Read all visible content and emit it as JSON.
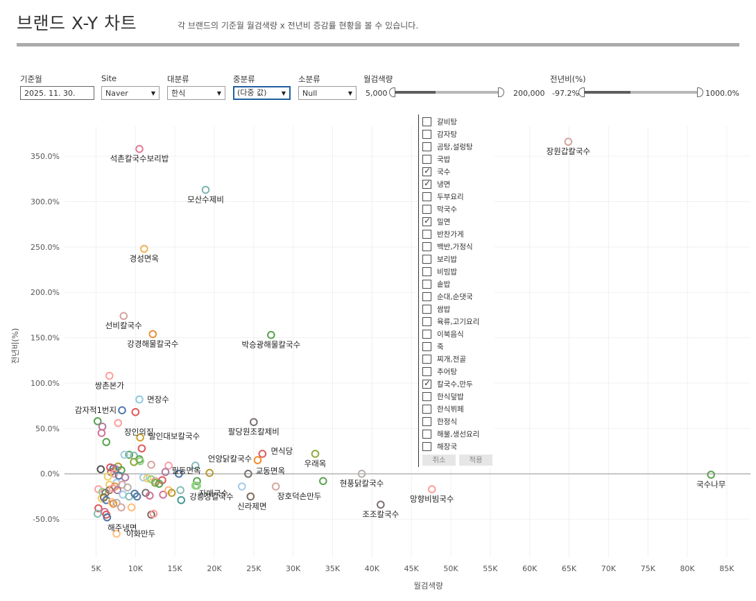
{
  "header": {
    "title": "브랜드 X-Y 차트",
    "subtitle": "각 브랜드의 기준월 월검색량 x 전년비 증감률 현황을 볼 수 있습니다."
  },
  "filters": {
    "base_month": {
      "label": "기준월",
      "value": "2025. 11. 30."
    },
    "site": {
      "label": "Site",
      "value": "Naver"
    },
    "major": {
      "label": "대분류",
      "value": "한식"
    },
    "middle": {
      "label": "중분류",
      "value": "(다중 값)"
    },
    "minor": {
      "label": "소분류",
      "value": "Null"
    },
    "volume": {
      "label": "월검색량",
      "min": "5,000",
      "max": "200,000"
    },
    "yoy": {
      "label": "전년비(%)",
      "min": "-97.2%",
      "max": "1000.0%"
    }
  },
  "dropdown": {
    "items": [
      {
        "label": "갈비탕",
        "checked": false
      },
      {
        "label": "감자탕",
        "checked": false
      },
      {
        "label": "곰탕,설렁탕",
        "checked": false
      },
      {
        "label": "국밥",
        "checked": false
      },
      {
        "label": "국수",
        "checked": true
      },
      {
        "label": "냉면",
        "checked": true
      },
      {
        "label": "두부요리",
        "checked": false
      },
      {
        "label": "막국수",
        "checked": false
      },
      {
        "label": "밀면",
        "checked": true
      },
      {
        "label": "반찬가게",
        "checked": false
      },
      {
        "label": "백반,가정식",
        "checked": false
      },
      {
        "label": "보리밥",
        "checked": false
      },
      {
        "label": "비빔밥",
        "checked": false
      },
      {
        "label": "솥밥",
        "checked": false
      },
      {
        "label": "순대,순댓국",
        "checked": false
      },
      {
        "label": "쌈밥",
        "checked": false
      },
      {
        "label": "육류,고기요리",
        "checked": false
      },
      {
        "label": "이북음식",
        "checked": false
      },
      {
        "label": "죽",
        "checked": false
      },
      {
        "label": "찌개,전골",
        "checked": false
      },
      {
        "label": "추어탕",
        "checked": false
      },
      {
        "label": "칼국수,만두",
        "checked": true
      },
      {
        "label": "한식덮밥",
        "checked": false
      },
      {
        "label": "한식뷔페",
        "checked": false
      },
      {
        "label": "한정식",
        "checked": false
      },
      {
        "label": "해물,생선요리",
        "checked": false
      },
      {
        "label": "해장국",
        "checked": false
      }
    ],
    "cancel_label": "취소",
    "apply_label": "적용"
  },
  "chart_data": {
    "type": "scatter",
    "xlabel": "월검색량",
    "ylabel": "전년비(%)",
    "xlim": [
      1000,
      88000
    ],
    "ylim": [
      -92,
      383
    ],
    "xticks": [
      5000,
      10000,
      15000,
      20000,
      25000,
      30000,
      35000,
      40000,
      45000,
      50000,
      55000,
      60000,
      65000,
      70000,
      75000,
      80000,
      85000
    ],
    "xtick_labels": [
      "5K",
      "10K",
      "15K",
      "20K",
      "25K",
      "30K",
      "35K",
      "40K",
      "45K",
      "50K",
      "55K",
      "60K",
      "65K",
      "70K",
      "75K",
      "80K",
      "85K"
    ],
    "yticks": [
      -50,
      0,
      50,
      100,
      150,
      200,
      250,
      300,
      350
    ],
    "ytick_labels": [
      "-50.0%",
      "0.0%",
      "50.0%",
      "100.0%",
      "150.0%",
      "200.0%",
      "250.0%",
      "300.0%",
      "350.0%"
    ],
    "grid": true,
    "marker": "hollow-circle",
    "points": [
      {
        "label": "석촌칼국수보리밥",
        "x": 10500,
        "y": 358,
        "color": "#e07b91"
      },
      {
        "label": "장원갑칼국수",
        "x": 64900,
        "y": 366,
        "color": "#d4a6a0"
      },
      {
        "label": "모산수제비",
        "x": 18900,
        "y": 313,
        "color": "#7cb4b0"
      },
      {
        "label": "경성면옥",
        "x": 11100,
        "y": 248,
        "color": "#f2b255"
      },
      {
        "label": "선비칼국수",
        "x": 8500,
        "y": 174,
        "color": "#d4a6a0"
      },
      {
        "label": "강경해물칼국수",
        "x": 12200,
        "y": 154,
        "color": "#e8913a"
      },
      {
        "label": "박승광해물칼국수",
        "x": 27200,
        "y": 153,
        "color": "#59a14f"
      },
      {
        "label": "쌍촌본가",
        "x": 6700,
        "y": 108,
        "color": "#ff9d9a"
      },
      {
        "label": "면장수",
        "x": 10500,
        "y": 82,
        "color": "#8fc7e0"
      },
      {
        "label": "감자적1번지",
        "x": 8300,
        "y": 70,
        "color": "#4e79a7"
      },
      {
        "label": "",
        "x": 10000,
        "y": 68,
        "color": "#e15759"
      },
      {
        "label": "",
        "x": 5200,
        "y": 58,
        "color": "#59a14f"
      },
      {
        "label": "장인의집",
        "x": 7800,
        "y": 56,
        "color": "#ff9d9a"
      },
      {
        "label": "",
        "x": 5800,
        "y": 52,
        "color": "#b07aa1"
      },
      {
        "label": "",
        "x": 5700,
        "y": 45,
        "color": "#d37295"
      },
      {
        "label": "팔당원조칼제비",
        "x": 25000,
        "y": 57,
        "color": "#79706e"
      },
      {
        "label": "달인대보칼국수",
        "x": 10600,
        "y": 40,
        "color": "#c9a227"
      },
      {
        "label": "",
        "x": 6300,
        "y": 35,
        "color": "#59a14f"
      },
      {
        "label": "",
        "x": 10800,
        "y": 28,
        "color": "#e15759"
      },
      {
        "label": "우래옥",
        "x": 32800,
        "y": 22,
        "color": "#8cab3a"
      },
      {
        "label": "면식당",
        "x": 26100,
        "y": 22,
        "color": "#e15759"
      },
      {
        "label": "",
        "x": 9200,
        "y": 21,
        "color": "#59a14f"
      },
      {
        "label": "",
        "x": 8600,
        "y": 21,
        "color": "#a0cbe8"
      },
      {
        "label": "",
        "x": 9800,
        "y": 20,
        "color": "#86bcb6"
      },
      {
        "label": "",
        "x": 10500,
        "y": 16,
        "color": "#59a14f"
      },
      {
        "label": "",
        "x": 10600,
        "y": 14,
        "color": "#8cd17d"
      },
      {
        "label": "언양닭칼국수",
        "x": 25500,
        "y": 15,
        "color": "#f28e2b"
      },
      {
        "label": "",
        "x": 9800,
        "y": 13,
        "color": "#8cab3a"
      },
      {
        "label": "",
        "x": 12000,
        "y": 10,
        "color": "#d4a6a0"
      },
      {
        "label": "",
        "x": 14200,
        "y": 9,
        "color": "#ff9da7"
      },
      {
        "label": "",
        "x": 17600,
        "y": 9,
        "color": "#86bcb6"
      },
      {
        "label": "",
        "x": 7800,
        "y": 8,
        "color": "#b6992d"
      },
      {
        "label": "",
        "x": 7200,
        "y": 6,
        "color": "#4e79a7"
      },
      {
        "label": "",
        "x": 6800,
        "y": 7,
        "color": "#e15759"
      },
      {
        "label": "",
        "x": 7500,
        "y": 5,
        "color": "#b07aa1"
      },
      {
        "label": "",
        "x": 5600,
        "y": 5,
        "color": "#4e4e4e"
      },
      {
        "label": "",
        "x": 8200,
        "y": 4,
        "color": "#59a14f"
      },
      {
        "label": "",
        "x": 6900,
        "y": 2,
        "color": "#9d7660"
      },
      {
        "label": "",
        "x": 7300,
        "y": 0,
        "color": "#ff9d9a"
      },
      {
        "label": "",
        "x": 7900,
        "y": -2,
        "color": "#4e79a7"
      },
      {
        "label": "",
        "x": 6500,
        "y": -3,
        "color": "#f1ce63"
      },
      {
        "label": "",
        "x": 8700,
        "y": -4,
        "color": "#b07aa1"
      },
      {
        "label": "필동면옥",
        "x": 13800,
        "y": 2,
        "color": "#b07aa1"
      },
      {
        "label": "",
        "x": 15500,
        "y": 0,
        "color": "#4e79a7"
      },
      {
        "label": "",
        "x": 19400,
        "y": 1,
        "color": "#b6992d"
      },
      {
        "label": "교동면옥",
        "x": 24300,
        "y": 0,
        "color": "#79706e"
      },
      {
        "label": "현풍닭칼국수",
        "x": 38700,
        "y": 0,
        "color": "#bab0ac"
      },
      {
        "label": "국수나무",
        "x": 83000,
        "y": -1,
        "color": "#59a14f"
      },
      {
        "label": "",
        "x": 11000,
        "y": -4,
        "color": "#a0cbe8"
      },
      {
        "label": "",
        "x": 11500,
        "y": -5,
        "color": "#f1ce63"
      },
      {
        "label": "",
        "x": 12000,
        "y": -6,
        "color": "#8cd17d"
      },
      {
        "label": "",
        "x": 12500,
        "y": -8,
        "color": "#d4a6a0"
      },
      {
        "label": "",
        "x": 13400,
        "y": -7,
        "color": "#e15759"
      },
      {
        "label": "",
        "x": 12500,
        "y": -10,
        "color": "#8cab3a"
      },
      {
        "label": "",
        "x": 13000,
        "y": -11,
        "color": "#59a14f"
      },
      {
        "label": "자매국수",
        "x": 17800,
        "y": -8,
        "color": "#59a14f"
      },
      {
        "label": "",
        "x": 33800,
        "y": -8,
        "color": "#59a14f"
      },
      {
        "label": "",
        "x": 6700,
        "y": -12,
        "color": "#f1ce63"
      },
      {
        "label": "",
        "x": 7600,
        "y": -10,
        "color": "#a0cbe8"
      },
      {
        "label": "",
        "x": 7400,
        "y": -14,
        "color": "#e8913a"
      },
      {
        "label": "",
        "x": 8300,
        "y": -12,
        "color": "#d4a6a0"
      },
      {
        "label": "",
        "x": 9000,
        "y": -15,
        "color": "#bab0ac"
      },
      {
        "label": "",
        "x": 5300,
        "y": -17,
        "color": "#ff9da7"
      },
      {
        "label": "",
        "x": 5800,
        "y": -20,
        "color": "#8cd17d"
      },
      {
        "label": "",
        "x": 6200,
        "y": -21,
        "color": "#79706e"
      },
      {
        "label": "",
        "x": 6700,
        "y": -18,
        "color": "#9d7660"
      },
      {
        "label": "",
        "x": 7100,
        "y": -16,
        "color": "#ff9d9a"
      },
      {
        "label": "",
        "x": 7700,
        "y": -18,
        "color": "#b07aa1"
      },
      {
        "label": "",
        "x": 8400,
        "y": -23,
        "color": "#a0cbe8"
      },
      {
        "label": "",
        "x": 9200,
        "y": -25,
        "color": "#86bcb6"
      },
      {
        "label": "",
        "x": 9900,
        "y": -22,
        "color": "#4e79a7"
      },
      {
        "label": "",
        "x": 10200,
        "y": -25,
        "color": "#4e79a7"
      },
      {
        "label": "",
        "x": 11300,
        "y": -21,
        "color": "#79706e"
      },
      {
        "label": "",
        "x": 11800,
        "y": -24,
        "color": "#d37295"
      },
      {
        "label": "",
        "x": 13500,
        "y": -23,
        "color": "#d37295"
      },
      {
        "label": "",
        "x": 14200,
        "y": -18,
        "color": "#ffbe7d"
      },
      {
        "label": "",
        "x": 14600,
        "y": -21,
        "color": "#b6992d"
      },
      {
        "label": "",
        "x": 15700,
        "y": -18,
        "color": "#86bcb6"
      },
      {
        "label": "",
        "x": 15800,
        "y": -29,
        "color": "#499894"
      },
      {
        "label": "",
        "x": 17600,
        "y": -13,
        "color": "#8cd17d"
      },
      {
        "label": "강릉장칼국수",
        "x": 17800,
        "y": -13,
        "color": "#8cd17d"
      },
      {
        "label": "신라제면",
        "x": 24600,
        "y": -25,
        "color": "#7d6b5d"
      },
      {
        "label": "장호덕손만두",
        "x": 27800,
        "y": -14,
        "color": "#d4a6a0"
      },
      {
        "label": "",
        "x": 23500,
        "y": -14,
        "color": "#a0cbe8"
      },
      {
        "label": "망향비빔국수",
        "x": 47600,
        "y": -17,
        "color": "#ff9d9a"
      },
      {
        "label": "조조칼국수",
        "x": 41100,
        "y": -34,
        "color": "#79706e"
      },
      {
        "label": "",
        "x": 5700,
        "y": -27,
        "color": "#f1ce63"
      },
      {
        "label": "",
        "x": 6000,
        "y": -26,
        "color": "#7d6b5d"
      },
      {
        "label": "",
        "x": 6300,
        "y": -29,
        "color": "#4e79a7"
      },
      {
        "label": "",
        "x": 7000,
        "y": -31,
        "color": "#ffbe7d"
      },
      {
        "label": "",
        "x": 7200,
        "y": -33,
        "color": "#e8913a"
      },
      {
        "label": "",
        "x": 7600,
        "y": -32,
        "color": "#bab0ac"
      },
      {
        "label": "",
        "x": 8200,
        "y": -37,
        "color": "#d4a6a0"
      },
      {
        "label": "",
        "x": 9500,
        "y": -37,
        "color": "#ffbe7d"
      },
      {
        "label": "",
        "x": 5300,
        "y": -38,
        "color": "#e15759"
      },
      {
        "label": "",
        "x": 6100,
        "y": -42,
        "color": "#d37295"
      },
      {
        "label": "",
        "x": 5200,
        "y": -44,
        "color": "#86bcb6"
      },
      {
        "label": "해주냉면",
        "x": 6300,
        "y": -45,
        "color": "#e15759"
      },
      {
        "label": "",
        "x": 6400,
        "y": -48,
        "color": "#4e79a7"
      },
      {
        "label": "",
        "x": 12000,
        "y": -45,
        "color": "#7d6b5d"
      },
      {
        "label": "",
        "x": 12300,
        "y": -44,
        "color": "#ff9d9a"
      },
      {
        "label": "이화만두",
        "x": 7600,
        "y": -66,
        "color": "#ffbe7d"
      }
    ]
  }
}
